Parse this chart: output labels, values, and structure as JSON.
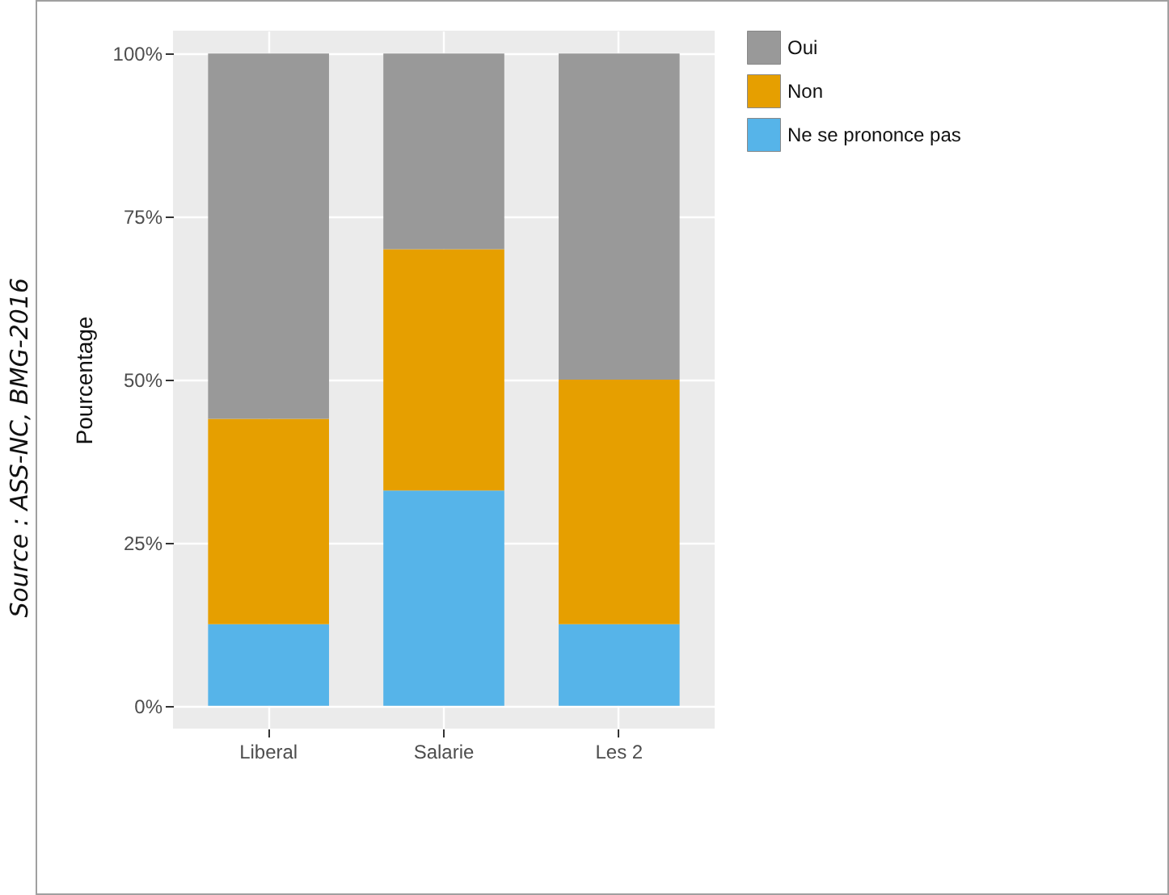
{
  "chart_data": {
    "type": "bar",
    "stacked": true,
    "ylabel": "Pourcentage",
    "categories": [
      "Liberal",
      "Salarie",
      "Les 2"
    ],
    "series": [
      {
        "name": "Ne se prononce pas",
        "color": "#56b4e9",
        "values": [
          12.5,
          33,
          12.5
        ]
      },
      {
        "name": "Non",
        "color": "#e69f00",
        "values": [
          31.5,
          37,
          37.5
        ]
      },
      {
        "name": "Oui",
        "color": "#999999",
        "values": [
          56,
          30,
          50
        ]
      }
    ],
    "ylim": [
      -3.5,
      103.5
    ],
    "yticks": [
      {
        "value": 0,
        "label": "0%"
      },
      {
        "value": 25,
        "label": "25%"
      },
      {
        "value": 50,
        "label": "50%"
      },
      {
        "value": 75,
        "label": "75%"
      },
      {
        "value": 100,
        "label": "100%"
      }
    ],
    "grid": true,
    "legend": "right",
    "annotations": [
      "Source : ASS-NC, BMG-2016"
    ]
  }
}
